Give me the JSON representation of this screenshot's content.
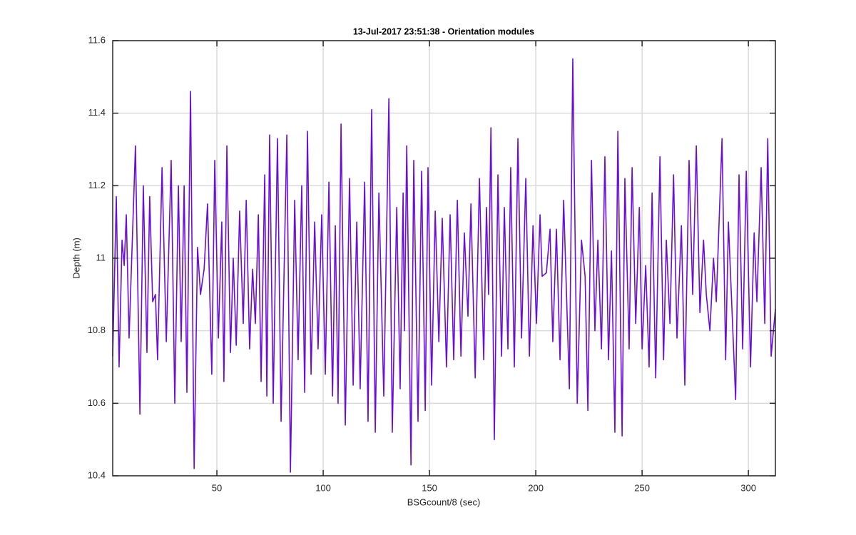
{
  "chart_data": {
    "type": "line",
    "title": "13-Jul-2017 23:51:38 - Orientation modules",
    "x_label": "BSGcount/8 (sec)",
    "y_label": "Depth (m)",
    "color": "#6a0dd6",
    "grid": true,
    "xlim": [
      1,
      312.7
    ],
    "ylim": [
      10.4,
      11.6
    ],
    "xticks": [
      50,
      100,
      150,
      200,
      250,
      300
    ],
    "yticks": [
      10.4,
      10.6,
      10.8,
      11,
      11.2,
      11.4,
      11.6
    ],
    "x": [
      1.0,
      2.7,
      4.0,
      5.4,
      6.4,
      7.4,
      8.7,
      11.7,
      13.8,
      15.4,
      17.1,
      18.4,
      19.8,
      21.1,
      22.1,
      24.2,
      26.2,
      28.5,
      30.2,
      31.9,
      33.2,
      34.6,
      35.9,
      37.6,
      39.3,
      40.9,
      42.3,
      44.0,
      45.6,
      47.6,
      49.0,
      50.7,
      52.3,
      53.3,
      54.7,
      56.4,
      57.7,
      59.1,
      60.7,
      62.4,
      63.8,
      65.4,
      66.8,
      68.1,
      69.5,
      70.8,
      72.5,
      73.5,
      74.8,
      76.5,
      78.5,
      80.2,
      82.9,
      84.6,
      86.6,
      88.2,
      89.9,
      91.3,
      92.6,
      94.3,
      96.0,
      97.6,
      99.3,
      101.0,
      102.7,
      104.4,
      105.7,
      107.0,
      108.4,
      110.4,
      112.4,
      114.1,
      115.8,
      117.4,
      119.5,
      121.1,
      122.8,
      124.5,
      126.2,
      128.5,
      130.9,
      132.5,
      134.6,
      136.2,
      137.6,
      138.2,
      139.3,
      141.3,
      142.6,
      144.6,
      146.3,
      148.0,
      149.3,
      151.0,
      152.7,
      154.4,
      156.0,
      158.0,
      159.7,
      161.4,
      163.1,
      164.8,
      166.4,
      168.1,
      169.5,
      171.5,
      173.5,
      175.5,
      176.8,
      177.8,
      178.9,
      180.5,
      182.2,
      183.9,
      185.2,
      186.9,
      188.2,
      189.9,
      191.6,
      193.3,
      195.3,
      197.0,
      198.7,
      200.3,
      202.0,
      203.0,
      205.0,
      206.7,
      208.0,
      209.7,
      211.4,
      213.1,
      215.8,
      217.4,
      219.5,
      221.5,
      223.2,
      224.5,
      226.2,
      227.8,
      229.2,
      230.9,
      232.5,
      234.2,
      235.6,
      237.2,
      238.6,
      240.6,
      241.9,
      243.9,
      245.3,
      247.0,
      248.7,
      250.0,
      251.7,
      253.3,
      254.7,
      256.4,
      258.4,
      260.1,
      261.4,
      263.1,
      264.8,
      266.4,
      268.5,
      270.1,
      272.1,
      273.8,
      275.5,
      277.2,
      278.9,
      280.2,
      281.9,
      283.6,
      284.9,
      287.6,
      289.3,
      290.6,
      294.0,
      295.6,
      297.3,
      299.0,
      301.0,
      302.7,
      304.0,
      306.0,
      307.7,
      309.1,
      310.7,
      312.7
    ],
    "values": [
      10.73,
      11.17,
      10.7,
      11.05,
      10.98,
      11.12,
      10.78,
      11.31,
      10.57,
      11.2,
      10.74,
      11.17,
      10.88,
      10.9,
      10.72,
      11.25,
      10.77,
      11.27,
      10.6,
      11.2,
      10.77,
      11.2,
      10.63,
      11.46,
      10.42,
      11.03,
      10.9,
      10.97,
      11.15,
      10.68,
      11.27,
      10.78,
      11.1,
      10.66,
      11.31,
      10.74,
      11.0,
      10.76,
      11.13,
      10.82,
      11.16,
      10.75,
      10.97,
      10.82,
      11.12,
      10.66,
      11.23,
      10.62,
      11.34,
      10.6,
      11.33,
      10.55,
      11.34,
      10.41,
      11.16,
      10.72,
      11.2,
      10.63,
      11.35,
      10.68,
      11.1,
      10.75,
      11.12,
      10.68,
      11.21,
      10.62,
      11.09,
      10.6,
      11.37,
      10.54,
      11.22,
      10.65,
      11.1,
      10.64,
      11.21,
      10.55,
      11.41,
      10.52,
      11.18,
      10.62,
      11.44,
      10.52,
      11.14,
      10.64,
      11.18,
      10.8,
      11.31,
      10.43,
      11.27,
      10.55,
      11.24,
      10.58,
      11.25,
      10.65,
      11.13,
      10.77,
      11.11,
      10.7,
      11.12,
      10.72,
      11.16,
      10.73,
      11.07,
      10.84,
      11.15,
      10.67,
      11.22,
      10.72,
      11.14,
      10.9,
      11.36,
      10.5,
      11.23,
      10.73,
      11.14,
      10.75,
      11.25,
      10.7,
      11.33,
      10.78,
      11.22,
      10.73,
      11.09,
      10.82,
      11.12,
      10.95,
      10.96,
      11.08,
      10.77,
      11.08,
      10.72,
      11.16,
      10.64,
      11.55,
      10.6,
      11.05,
      10.95,
      10.58,
      11.27,
      10.8,
      11.05,
      10.75,
      11.28,
      10.72,
      11.02,
      10.52,
      11.35,
      10.51,
      11.22,
      10.75,
      11.25,
      10.82,
      11.14,
      10.75,
      10.98,
      10.7,
      11.18,
      10.67,
      11.28,
      10.72,
      11.05,
      10.82,
      11.23,
      10.78,
      11.09,
      10.65,
      11.27,
      10.9,
      11.31,
      10.85,
      11.05,
      10.9,
      10.8,
      11.0,
      10.88,
      11.33,
      10.72,
      11.1,
      10.61,
      11.23,
      10.75,
      11.24,
      10.7,
      11.07,
      10.88,
      11.25,
      10.82,
      11.33,
      10.73,
      10.86
    ]
  }
}
